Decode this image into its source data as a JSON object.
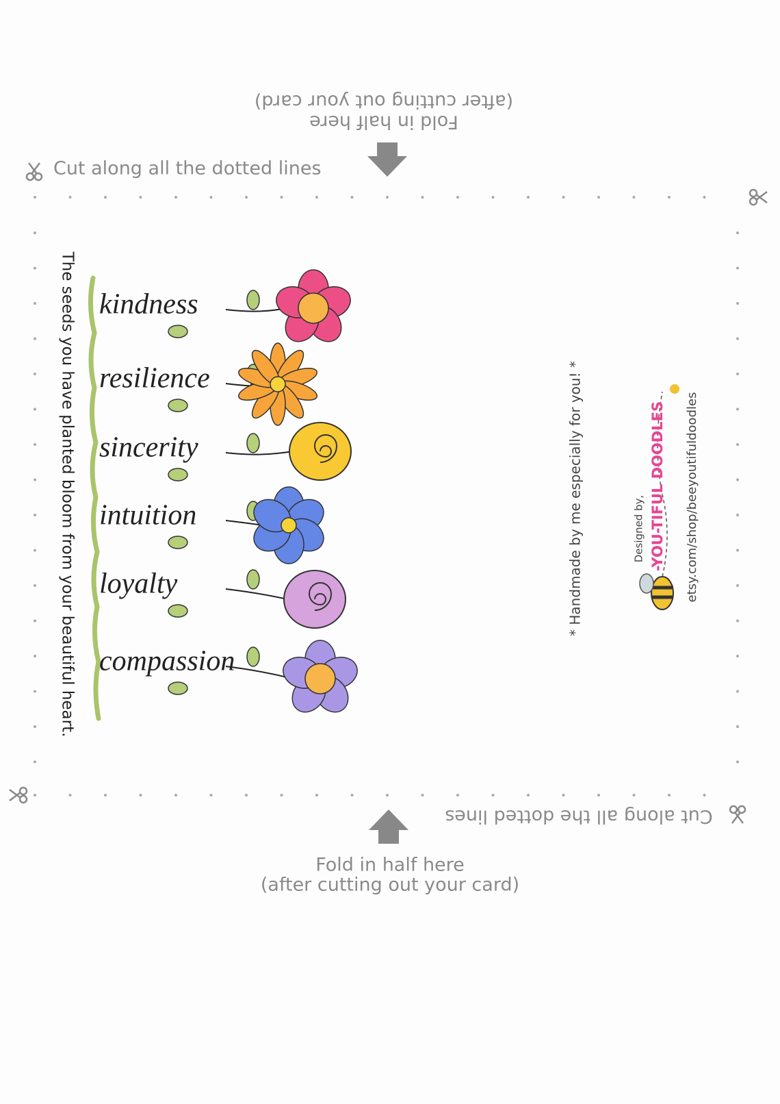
{
  "top_instructions": {
    "fold_label": "Fold in half here",
    "fold_note": "(after cutting out your card)",
    "cut_label": "Cut along all the dotted lines"
  },
  "bottom_instructions": {
    "cut_label": "Cut along all the dotted lines",
    "fold_label": "Fold in half here",
    "fold_note": "(after cutting out your card)"
  },
  "card": {
    "message": "The seeds you have planted bloom from your beautiful heart.",
    "words": [
      "kindness",
      "resilience",
      "sincerity",
      "intuition",
      "loyalty",
      "compassion"
    ],
    "handmade_note": "* Handmade by me especially for you! *",
    "credit": {
      "designed_by": "Designed by,",
      "brand": "-YOU-TIFUL DOODLES",
      "shop_url": "etsy.com/shop/beeyoutifuldoodles"
    }
  }
}
